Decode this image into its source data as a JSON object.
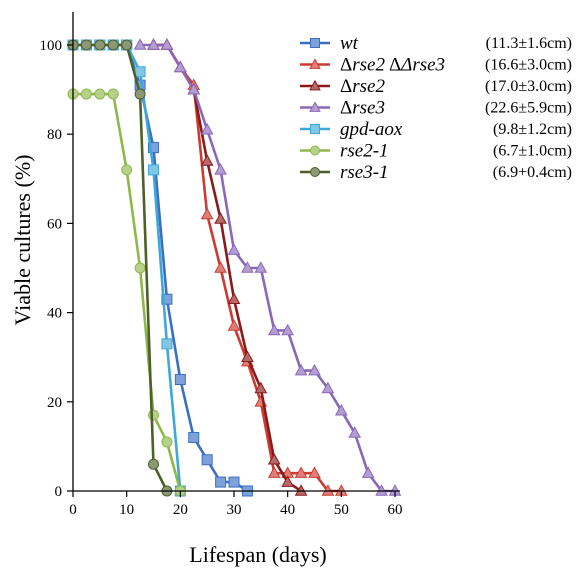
{
  "chart_data": {
    "type": "line",
    "xlabel": "Lifespan (days)",
    "ylabel": "Viable cultures (%)",
    "xlim": [
      0,
      60
    ],
    "ylim": [
      0,
      100
    ],
    "xticks": [
      "0",
      "10",
      "20",
      "30",
      "40",
      "50",
      "60"
    ],
    "yticks": [
      "0",
      "20",
      "40",
      "60",
      "80",
      "100"
    ],
    "grid": false,
    "legend_position": "top-right",
    "series": [
      {
        "name": "wt",
        "name_prefix": "",
        "stat": "(11.3±1.6cm)",
        "color": "#3a6fc4",
        "marker": "square",
        "x": [
          0,
          2.5,
          5,
          7.5,
          10,
          12.5,
          15,
          17.5,
          20,
          22.5,
          25,
          27.5,
          30,
          32.5
        ],
        "y": [
          100,
          100,
          100,
          100,
          100,
          91,
          77,
          43,
          25,
          12,
          7,
          2,
          2,
          0
        ]
      },
      {
        "name": "rse2 Δrse3",
        "name_prefix": "Δ",
        "stat": "(16.6±3.0cm)",
        "color": "#cc3b33",
        "marker": "triangle",
        "x": [
          15,
          17.5,
          20,
          22.5,
          25,
          27.5,
          30,
          32.5,
          35,
          37.5,
          40,
          42.5,
          45,
          47.5,
          50
        ],
        "y": [
          100,
          100,
          95,
          91,
          62,
          50,
          37,
          29,
          20,
          4,
          4,
          4,
          4,
          0,
          0
        ]
      },
      {
        "name": "rse2",
        "name_prefix": "Δ",
        "stat": "(17.0±3.0cm)",
        "color": "#8b1a1a",
        "marker": "triangle",
        "x": [
          15,
          17.5,
          20,
          22.5,
          25,
          27.5,
          30,
          32.5,
          35,
          37.5,
          40,
          42.5
        ],
        "y": [
          100,
          100,
          95,
          90,
          74,
          61,
          43,
          30,
          23,
          7,
          2,
          0
        ]
      },
      {
        "name": "rse3",
        "name_prefix": "Δ",
        "stat": "(22.6±5.9cm)",
        "color": "#8a68b8",
        "marker": "triangle",
        "x": [
          12.5,
          15,
          17.5,
          20,
          22.5,
          25,
          27.5,
          30,
          32.5,
          35,
          37.5,
          40,
          42.5,
          45,
          47.5,
          50,
          52.5,
          55,
          57.5,
          60
        ],
        "y": [
          100,
          100,
          100,
          95,
          90,
          81,
          72,
          54,
          50,
          50,
          36,
          36,
          27,
          27,
          23,
          18,
          13,
          4,
          0,
          0
        ]
      },
      {
        "name": "gpd-aox",
        "name_prefix": "",
        "stat": "(9.8±1.2cm)",
        "color": "#3fa8d8",
        "marker": "square",
        "x": [
          0,
          2.5,
          5,
          7.5,
          10,
          12.5,
          15,
          17.5,
          20
        ],
        "y": [
          100,
          100,
          100,
          100,
          100,
          94,
          72,
          33,
          0
        ]
      },
      {
        "name": "rse2-1",
        "name_prefix": "",
        "stat": "(6.7±1.0cm)",
        "color": "#8fb84a",
        "marker": "circle",
        "x": [
          0,
          2.5,
          5,
          7.5,
          10,
          12.5,
          15,
          17.5,
          20
        ],
        "y": [
          89,
          89,
          89,
          89,
          72,
          50,
          17,
          11,
          0
        ]
      },
      {
        "name": "rse3-1",
        "name_prefix": "",
        "stat": "(6.9+0.4cm)",
        "color": "#4e5f2a",
        "marker": "circle",
        "x": [
          0,
          2.5,
          5,
          7.5,
          10,
          12.5,
          15,
          17.5
        ],
        "y": [
          100,
          100,
          100,
          100,
          100,
          89,
          6,
          0
        ]
      }
    ]
  }
}
